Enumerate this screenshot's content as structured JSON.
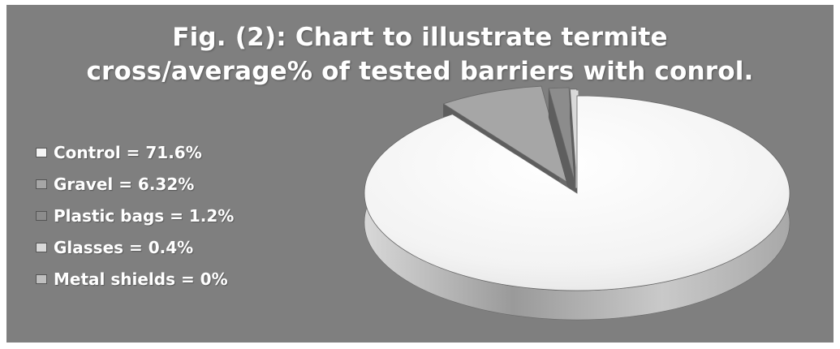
{
  "colors": {
    "background": "#7f7f7f",
    "control": "#f4f4f4",
    "gravel": "#a6a6a6",
    "plastic_bags": "#8c8c8c",
    "glasses": "#d9d9d9",
    "metal_shields": "#bfbfbf"
  },
  "chart_data": {
    "type": "pie",
    "title": "Fig. (2): Chart to illustrate termite cross/average% of tested barriers with conrol.",
    "title_lines": [
      "Fig. (2): Chart to illustrate termite",
      "cross/average% of tested barriers with conrol."
    ],
    "three_d": true,
    "exploded": true,
    "legend_position": "left",
    "categories": [
      "Control",
      "Gravel",
      "Plastic bags",
      "Glasses",
      "Metal shields"
    ],
    "values": [
      71.6,
      6.32,
      1.2,
      0.4,
      0
    ],
    "unit": "%",
    "legend_labels": [
      "Control = 71.6%",
      "Gravel = 6.32%",
      "Plastic bags = 1.2%",
      "Glasses = 0.4%",
      "Metal shields = 0%"
    ]
  }
}
